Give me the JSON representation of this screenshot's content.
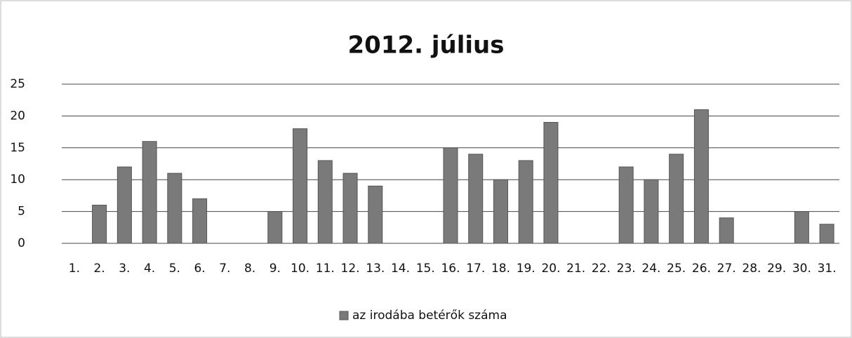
{
  "chart_data": {
    "type": "bar",
    "title": "2012. július",
    "categories": [
      "1.",
      "2.",
      "3.",
      "4.",
      "5.",
      "6.",
      "7.",
      "8.",
      "9.",
      "10.",
      "11.",
      "12.",
      "13.",
      "14.",
      "15.",
      "16.",
      "17.",
      "18.",
      "19.",
      "20.",
      "21.",
      "22.",
      "23.",
      "24.",
      "25.",
      "26.",
      "27.",
      "28.",
      "29.",
      "30.",
      "31."
    ],
    "series": [
      {
        "name": "az irodába betérők száma",
        "color": "#7a7a7a",
        "values": [
          0,
          6,
          12,
          16,
          11,
          7,
          0,
          0,
          5,
          18,
          13,
          11,
          9,
          0,
          0,
          15,
          14,
          10,
          13,
          19,
          0,
          0,
          12,
          10,
          14,
          21,
          4,
          0,
          0,
          5,
          3
        ]
      }
    ],
    "ylim": [
      0,
      25
    ],
    "yticks": [
      0,
      5,
      10,
      15,
      20,
      25
    ],
    "grid": true,
    "legend": "bottom"
  }
}
